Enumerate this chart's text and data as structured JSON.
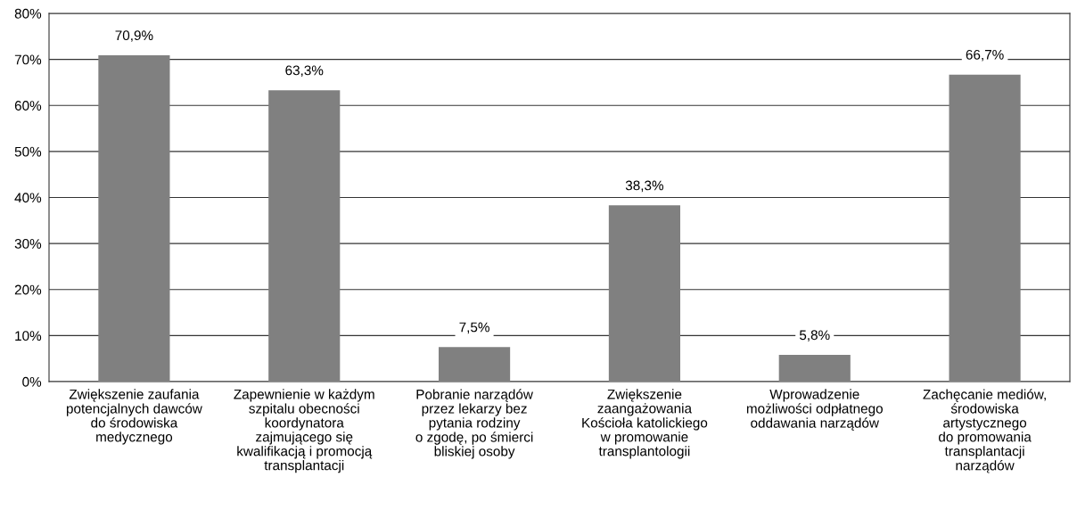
{
  "chart_data": {
    "type": "bar",
    "categories": [
      "Zwiększenie zaufania\npotencjalnych dawców\ndo środowiska\nmedycznego",
      "Zapewnienie w każdym\nszpitalu obecności\nkoordynatora\nzajmującego się\nkwalifikacją i promocją\ntransplantacji",
      "Pobranie narządów\nprzez lekarzy bez\npytania rodziny\no zgodę, po śmierci\nbliskiej osoby",
      "Zwiększenie\nzaangażowania\nKościoła katolickiego\nw promowanie\ntransplantologii",
      "Wprowadzenie\nmożliwości odpłatnego\noddawania narządów",
      "Zachęcanie mediów,\nśrodowiska\nartystycznego\ndo promowania\ntransplantacji\nnarządów"
    ],
    "values": [
      70.9,
      63.3,
      7.5,
      38.3,
      5.8,
      66.7
    ],
    "value_labels": [
      "70,9%",
      "63,3%",
      "7,5%",
      "38,3%",
      "5,8%",
      "66,7%"
    ],
    "color": "#808080",
    "ylim": [
      0,
      80
    ],
    "yticks": [
      {
        "value": 0,
        "label": "0%"
      },
      {
        "value": 10,
        "label": "10%"
      },
      {
        "value": 20,
        "label": "20%"
      },
      {
        "value": 30,
        "label": "30%"
      },
      {
        "value": 40,
        "label": "40%"
      },
      {
        "value": 50,
        "label": "50%"
      },
      {
        "value": 60,
        "label": "60%"
      },
      {
        "value": 70,
        "label": "70%"
      },
      {
        "value": 80,
        "label": "80%"
      }
    ],
    "grid": "y"
  }
}
